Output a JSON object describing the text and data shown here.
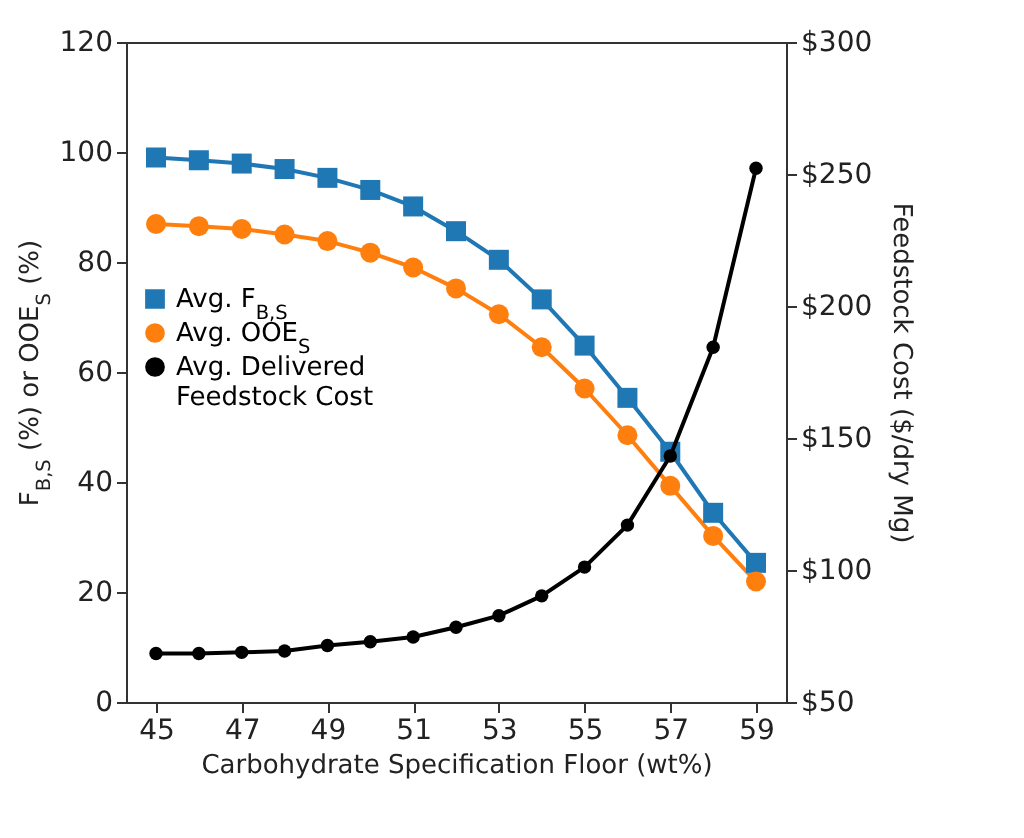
{
  "chart_data": {
    "type": "line",
    "xlabel": "Carbohydrate Specification Floor (wt%)",
    "ylabel": "F$_{B,S}$ (%) or OOE$_{S}$ (%)",
    "y2label": "Feedstock Cost ($/dry Mg)",
    "x": [
      45,
      46,
      47,
      48,
      49,
      50,
      51,
      52,
      53,
      54,
      55,
      56,
      57,
      58,
      59
    ],
    "series": [
      {
        "name": "Avg. F$_{B,S}$",
        "color": "#1f77b4",
        "marker": "square",
        "values": [
          99.0,
          98.5,
          97.9,
          96.9,
          95.3,
          93.1,
          90.1,
          85.6,
          80.4,
          73.2,
          64.8,
          55.3,
          45.5,
          34.4,
          25.3
        ]
      },
      {
        "name": "Avg. OOE$_{S}$",
        "color": "#ff7f0e",
        "marker": "circle",
        "values": [
          86.9,
          86.5,
          86.0,
          85.0,
          83.8,
          81.7,
          79.0,
          75.2,
          70.5,
          64.5,
          57.0,
          48.5,
          39.3,
          30.2,
          21.9
        ]
      },
      {
        "name": "Avg. Delivered Feedstock Cost",
        "color": "#000000",
        "marker": "circle",
        "axis": "y2",
        "values": [
          68.4,
          68.4,
          68.8,
          69.3,
          71.4,
          72.8,
          74.6,
          78.3,
          82.7,
          90.2,
          101.1,
          117.0,
          143.2,
          184.4,
          252.2
        ]
      }
    ],
    "xlim": [
      44.3,
      59.7
    ],
    "xticks": [
      45,
      47,
      49,
      51,
      53,
      55,
      57,
      59
    ],
    "ylim": [
      0,
      120
    ],
    "yticks": [
      0,
      20,
      40,
      60,
      80,
      100,
      120
    ],
    "y2lim": [
      50,
      300
    ],
    "y2ticks": [
      {
        "value": 50,
        "label": "$50"
      },
      {
        "value": 100,
        "label": "$100"
      },
      {
        "value": 150,
        "label": "$150"
      },
      {
        "value": 200,
        "label": "$200"
      },
      {
        "value": 250,
        "label": "$250"
      },
      {
        "value": 300,
        "label": "$300"
      }
    ],
    "grid": false,
    "legend": "left",
    "line_style": "solid"
  }
}
